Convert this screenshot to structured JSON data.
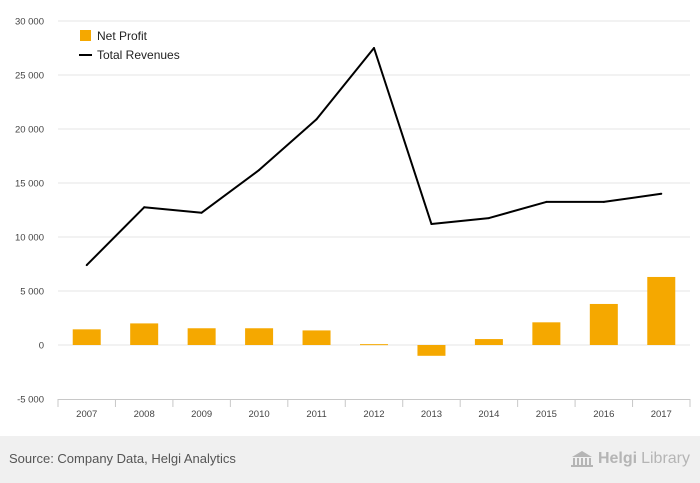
{
  "chart_data": {
    "type": "bar",
    "categories": [
      "2007",
      "2008",
      "2009",
      "2010",
      "2011",
      "2012",
      "2013",
      "2014",
      "2015",
      "2016",
      "2017"
    ],
    "series": [
      {
        "name": "Net Profit",
        "type": "bar",
        "color": "#f5a800",
        "values": [
          1450,
          2000,
          1550,
          1550,
          1350,
          80,
          -1000,
          550,
          2100,
          3800,
          6300
        ]
      },
      {
        "name": "Total Revenues",
        "type": "line",
        "color": "#000000",
        "values": [
          7400,
          12750,
          12250,
          16200,
          20900,
          27500,
          11200,
          11750,
          13250,
          13250,
          14000
        ]
      }
    ],
    "ylim": [
      -5000,
      30000
    ],
    "yticks": [
      -5000,
      0,
      5000,
      10000,
      15000,
      20000,
      25000,
      30000
    ],
    "ytick_labels": [
      "-5 000",
      "0",
      "5 000",
      "10 000",
      "15 000",
      "20 000",
      "25 000",
      "30 000"
    ],
    "grid": true,
    "legend": "top-left"
  },
  "footer": {
    "source": "Source: Company Data, Helgi Analytics",
    "brand_first": "Helgi",
    "brand_second": "Library"
  }
}
